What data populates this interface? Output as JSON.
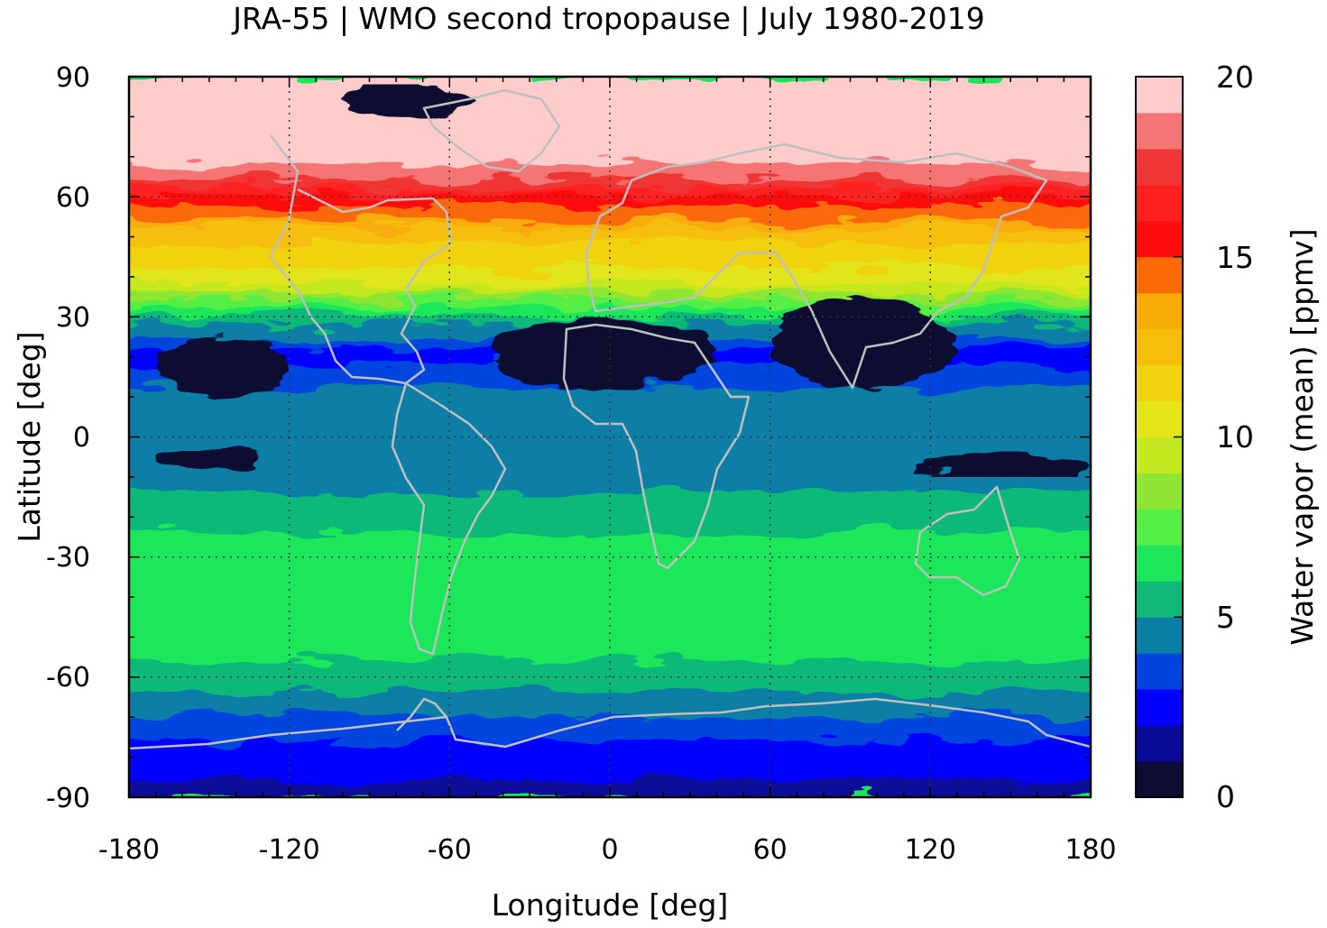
{
  "chart_data": {
    "type": "heatmap",
    "title": "JRA-55 | WMO second tropopause | July 1980-2019",
    "xlabel": "Longitude [deg]",
    "ylabel": "Latitude [deg]",
    "xlim": [
      -180,
      180
    ],
    "ylim": [
      -90,
      90
    ],
    "x_ticks": [
      -180,
      -120,
      -60,
      0,
      60,
      120,
      180
    ],
    "y_ticks": [
      90,
      60,
      30,
      0,
      -30,
      -60,
      -90
    ],
    "x_tick_labels": [
      "-180",
      "-120",
      "-60",
      "0",
      "60",
      "120",
      "180"
    ],
    "y_tick_labels": [
      "90",
      "60",
      "30",
      "0",
      "-30",
      "-60",
      "-90"
    ],
    "grid": true,
    "coastlines": true,
    "coastline_color": "#bfbfbf",
    "colorbar": {
      "label": "Water vapor (mean) [ppmv]",
      "range": [
        0,
        20
      ],
      "ticks": [
        0,
        5,
        10,
        15,
        20
      ],
      "tick_labels": [
        "0",
        "5",
        "10",
        "15",
        "20"
      ],
      "colors": [
        "#0d0d33",
        "#0a0a99",
        "#0000ff",
        "#0044dd",
        "#0a7fa6",
        "#10b978",
        "#1ee65a",
        "#55ee45",
        "#8ee533",
        "#c4e81f",
        "#e3e51a",
        "#f0d211",
        "#f6be0a",
        "#f8ac08",
        "#fa6a08",
        "#ff0d0d",
        "#ff2020",
        "#f03535",
        "#f57575",
        "#ffcccc"
      ]
    },
    "zonal_mean_by_latitude": {
      "lat": [
        -90,
        -80,
        -70,
        -60,
        -50,
        -40,
        -30,
        -20,
        -10,
        0,
        10,
        20,
        30,
        40,
        50,
        60,
        70,
        80,
        90
      ],
      "value": [
        1.5,
        2.5,
        4,
        5.5,
        6.8,
        6.8,
        6.5,
        5.5,
        4.5,
        4.5,
        4.5,
        2.5,
        6,
        10.5,
        12.5,
        16,
        20,
        20,
        20
      ]
    },
    "dry_regions_lt_1ppmv": [
      {
        "lon": [
          -170,
          -120
        ],
        "lat": [
          10,
          25
        ]
      },
      {
        "lon": [
          -170,
          -130
        ],
        "lat": [
          -8,
          -3
        ]
      },
      {
        "lon": [
          -45,
          40
        ],
        "lat": [
          12,
          30
        ]
      },
      {
        "lon": [
          60,
          130
        ],
        "lat": [
          12,
          35
        ]
      },
      {
        "lon": [
          115,
          180
        ],
        "lat": [
          -10,
          -5
        ]
      },
      {
        "lon": [
          -100,
          -50
        ],
        "lat": [
          80,
          88
        ]
      }
    ]
  }
}
